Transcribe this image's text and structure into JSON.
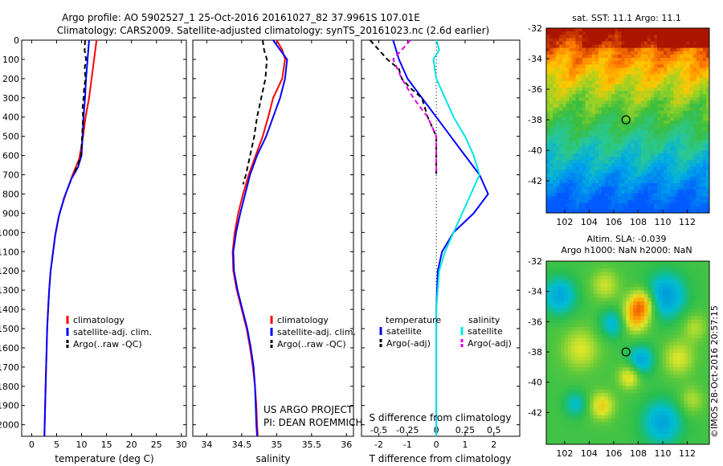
{
  "title_line1": "Argo profile: AO 5902527_1 25-Oct-2016 20161027_82 37.9961S 107.01E",
  "title_line2": "Climatology: CARS2009. Satellite-adjusted climatology: synTS_20161023.nc (2.6d earlier)",
  "credit": "US ARGO PROJECT",
  "pi": "PI: DEAN ROEMMICH",
  "imos_stamp": "©IMOS 28-Oct-2016 20:57:15",
  "colors": {
    "climatology": "#ff0000",
    "satellite": "#0000ff",
    "argo": "#000000",
    "sal_satellite": "#00e5e5",
    "sal_argo": "#e000e0"
  },
  "chart_data": [
    {
      "type": "line",
      "panel": "temperature",
      "xlabel": "temperature (deg C)",
      "ylabel": "",
      "xlim": [
        -2,
        31
      ],
      "ylim": [
        2060,
        0
      ],
      "x_ticks": [
        "0",
        "5",
        "10",
        "15",
        "20",
        "25",
        "30"
      ],
      "y_ticks": [
        "0",
        "100",
        "200",
        "300",
        "400",
        "500",
        "600",
        "700",
        "800",
        "900",
        "1000",
        "1100",
        "1200",
        "1300",
        "1400",
        "1500",
        "1600",
        "1700",
        "1800",
        "1900",
        "2000"
      ],
      "legend": [
        "climatology",
        "satellite-adj. clim.",
        "Argo(..raw -QC)"
      ],
      "series": [
        {
          "name": "climatology",
          "style": "solid",
          "color": "#ff0000",
          "points": [
            [
              13,
              0
            ],
            [
              12.5,
              100
            ],
            [
              12,
              200
            ],
            [
              11.5,
              300
            ],
            [
              10.8,
              400
            ],
            [
              10.3,
              500
            ],
            [
              10,
              550
            ],
            [
              9.5,
              620
            ],
            [
              8.2,
              700
            ],
            [
              6.8,
              800
            ],
            [
              5.6,
              900
            ],
            [
              4.8,
              1000
            ],
            [
              4.3,
              1100
            ],
            [
              3.8,
              1200
            ],
            [
              3.5,
              1300
            ],
            [
              3.3,
              1400
            ],
            [
              3.1,
              1500
            ],
            [
              3.0,
              1600
            ],
            [
              2.9,
              1700
            ],
            [
              2.8,
              1800
            ],
            [
              2.7,
              1900
            ],
            [
              2.6,
              2000
            ],
            [
              2.55,
              2060
            ]
          ]
        },
        {
          "name": "satellite-adj. clim.",
          "style": "solid",
          "color": "#0000ff",
          "points": [
            [
              11.5,
              0
            ],
            [
              11.2,
              100
            ],
            [
              10.9,
              200
            ],
            [
              10.7,
              300
            ],
            [
              10.4,
              400
            ],
            [
              10.2,
              500
            ],
            [
              10.0,
              600
            ],
            [
              9.3,
              660
            ],
            [
              8.0,
              720
            ],
            [
              6.5,
              820
            ],
            [
              5.4,
              920
            ],
            [
              4.7,
              1020
            ],
            [
              4.2,
              1120
            ],
            [
              3.8,
              1200
            ],
            [
              3.5,
              1300
            ],
            [
              3.3,
              1400
            ],
            [
              3.1,
              1500
            ],
            [
              3.0,
              1600
            ],
            [
              2.9,
              1700
            ],
            [
              2.8,
              1800
            ],
            [
              2.7,
              1900
            ],
            [
              2.6,
              2000
            ],
            [
              2.55,
              2060
            ]
          ]
        },
        {
          "name": "Argo(..raw -QC)",
          "style": "dashed",
          "color": "#000000",
          "points": [
            [
              10.7,
              0
            ],
            [
              10.6,
              50
            ],
            [
              10.9,
              100
            ],
            [
              10.6,
              150
            ],
            [
              10.8,
              200
            ],
            [
              10.5,
              250
            ],
            [
              10.4,
              300
            ],
            [
              10.2,
              350
            ],
            [
              10.3,
              400
            ],
            [
              10.1,
              500
            ],
            [
              9.9,
              600
            ],
            [
              9.2,
              650
            ],
            [
              8.4,
              700
            ]
          ]
        }
      ]
    },
    {
      "type": "line",
      "panel": "salinity",
      "xlabel": "salinity",
      "xlim": [
        33.8,
        36.1
      ],
      "ylim": [
        2060,
        0
      ],
      "x_ticks": [
        "34",
        "34.5",
        "35",
        "35.5",
        "36"
      ],
      "legend": [
        "climatology",
        "satellite-adj. clim.",
        "Argo(..raw -QC)"
      ],
      "series": [
        {
          "name": "climatology",
          "style": "solid",
          "color": "#ff0000",
          "points": [
            [
              35.0,
              0
            ],
            [
              35.08,
              50
            ],
            [
              35.12,
              100
            ],
            [
              35.08,
              200
            ],
            [
              34.95,
              300
            ],
            [
              34.88,
              400
            ],
            [
              34.8,
              500
            ],
            [
              34.7,
              600
            ],
            [
              34.6,
              700
            ],
            [
              34.52,
              800
            ],
            [
              34.45,
              900
            ],
            [
              34.4,
              1000
            ],
            [
              34.37,
              1100
            ],
            [
              34.38,
              1200
            ],
            [
              34.43,
              1300
            ],
            [
              34.5,
              1400
            ],
            [
              34.57,
              1500
            ],
            [
              34.62,
              1600
            ],
            [
              34.66,
              1700
            ],
            [
              34.69,
              1800
            ],
            [
              34.71,
              1900
            ],
            [
              34.72,
              2000
            ],
            [
              34.73,
              2060
            ]
          ]
        },
        {
          "name": "satellite-adj. clim.",
          "style": "solid",
          "color": "#0000ff",
          "points": [
            [
              34.95,
              0
            ],
            [
              35.05,
              50
            ],
            [
              35.15,
              100
            ],
            [
              35.12,
              200
            ],
            [
              35.05,
              300
            ],
            [
              34.95,
              400
            ],
            [
              34.85,
              500
            ],
            [
              34.72,
              600
            ],
            [
              34.62,
              700
            ],
            [
              34.55,
              800
            ],
            [
              34.48,
              900
            ],
            [
              34.42,
              1000
            ],
            [
              34.38,
              1100
            ],
            [
              34.39,
              1200
            ],
            [
              34.44,
              1300
            ],
            [
              34.51,
              1400
            ],
            [
              34.58,
              1500
            ],
            [
              34.63,
              1600
            ],
            [
              34.67,
              1700
            ],
            [
              34.69,
              1800
            ],
            [
              34.7,
              1900
            ],
            [
              34.71,
              2000
            ],
            [
              34.72,
              2060
            ]
          ]
        },
        {
          "name": "Argo(..raw -QC)",
          "style": "dashed",
          "color": "#000000",
          "points": [
            [
              34.8,
              0
            ],
            [
              34.82,
              50
            ],
            [
              34.86,
              100
            ],
            [
              34.84,
              200
            ],
            [
              34.78,
              300
            ],
            [
              34.72,
              400
            ],
            [
              34.68,
              500
            ],
            [
              34.62,
              600
            ],
            [
              34.56,
              700
            ],
            [
              34.52,
              750
            ]
          ]
        }
      ]
    },
    {
      "type": "line",
      "panel": "difference",
      "xlabel": "T difference from climatology",
      "xlabel_top": "S difference from climatology",
      "xlim": [
        -2.6,
        2.9
      ],
      "ylim": [
        2060,
        0
      ],
      "x_ticks": [
        "-2",
        "-1",
        "0",
        "1",
        "2"
      ],
      "s_ticks": [
        "-0.5",
        "-0.25",
        "0",
        "0.25",
        "0.5"
      ],
      "legend_left_title": "temperature",
      "legend_right_title": "salinity",
      "legend_left": [
        "satellite",
        "Argo(-adj)"
      ],
      "legend_right": [
        "satellite",
        "Argo(-adj)"
      ],
      "series": [
        {
          "name": "temperature satellite",
          "style": "solid",
          "color": "#0000ff",
          "points": [
            [
              -1.5,
              0
            ],
            [
              -1.3,
              100
            ],
            [
              -1.0,
              200
            ],
            [
              -0.5,
              300
            ],
            [
              0,
              400
            ],
            [
              0.5,
              500
            ],
            [
              1.0,
              600
            ],
            [
              1.5,
              700
            ],
            [
              1.8,
              800
            ],
            [
              1.3,
              900
            ],
            [
              0.6,
              1000
            ],
            [
              0.2,
              1100
            ],
            [
              0.05,
              1200
            ],
            [
              0,
              1400
            ],
            [
              0,
              2060
            ]
          ]
        },
        {
          "name": "temperature Argo(-adj)",
          "style": "dashed",
          "color": "#000000",
          "points": [
            [
              -2.3,
              0
            ],
            [
              -2.0,
              50
            ],
            [
              -1.7,
              100
            ],
            [
              -1.3,
              150
            ],
            [
              -1.2,
              200
            ],
            [
              -0.9,
              250
            ],
            [
              -0.5,
              300
            ],
            [
              -0.3,
              400
            ],
            [
              0,
              500
            ],
            [
              0,
              600
            ],
            [
              0,
              700
            ]
          ]
        },
        {
          "name": "salinity satellite",
          "style": "solid",
          "color": "#00e5e5",
          "points": [
            [
              0,
              0
            ],
            [
              0.1,
              50
            ],
            [
              -0.1,
              100
            ],
            [
              0,
              200
            ],
            [
              0.3,
              300
            ],
            [
              0.6,
              400
            ],
            [
              1.0,
              500
            ],
            [
              1.3,
              600
            ],
            [
              1.5,
              700
            ],
            [
              1.2,
              800
            ],
            [
              0.9,
              900
            ],
            [
              0.6,
              1000
            ],
            [
              0.3,
              1100
            ],
            [
              0.1,
              1200
            ],
            [
              0,
              1400
            ],
            [
              0,
              2060
            ]
          ]
        },
        {
          "name": "salinity Argo(-adj)",
          "style": "dashed",
          "color": "#e000e0",
          "points": [
            [
              -0.9,
              0
            ],
            [
              -1.2,
              50
            ],
            [
              -1.5,
              100
            ],
            [
              -1.2,
              200
            ],
            [
              -0.8,
              300
            ],
            [
              -0.3,
              400
            ],
            [
              0,
              500
            ],
            [
              0,
              600
            ],
            [
              0,
              700
            ]
          ]
        }
      ]
    },
    {
      "type": "heatmap",
      "panel": "sst_map",
      "title": "sat. SST: 11.1  Argo: 11.1",
      "x_ticks": [
        "102",
        "104",
        "106",
        "108",
        "110",
        "112"
      ],
      "y_ticks": [
        "-32",
        "-34",
        "-36",
        "-38",
        "-40",
        "-42"
      ],
      "argo_position": [
        107.0,
        -38.0
      ]
    },
    {
      "type": "heatmap",
      "panel": "sla_map",
      "title_line1": "Altim. SLA: -0.039",
      "title_line2": "Argo h1000: NaN h2000: NaN",
      "x_ticks": [
        "102",
        "104",
        "106",
        "108",
        "110",
        "112"
      ],
      "y_ticks": [
        "-32",
        "-34",
        "-36",
        "-38",
        "-40",
        "-42"
      ],
      "argo_position": [
        107.0,
        -38.0
      ]
    }
  ]
}
